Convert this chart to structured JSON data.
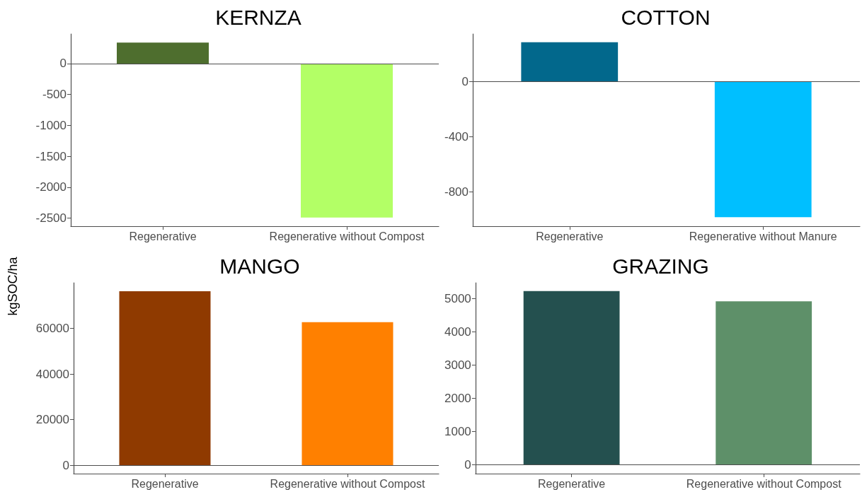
{
  "chart_data": [
    {
      "type": "bar",
      "title": "KERNZA",
      "ylabel": "kgSOC/ha",
      "categories": [
        "Regenerative",
        "Regenerative without Compost"
      ],
      "values": [
        340,
        -2490
      ],
      "colors": [
        "#4e6e2e",
        "#b3ff66"
      ],
      "ylim": [
        -2630,
        480
      ],
      "yticks": [
        0,
        -500,
        -1000,
        -1500,
        -2000,
        -2500
      ],
      "grid": false,
      "ref_lines": [
        {
          "axis": "y",
          "value": 0
        }
      ]
    },
    {
      "type": "bar",
      "title": "COTTON",
      "categories": [
        "Regenerative",
        "Regenerative without Manure"
      ],
      "values": [
        285,
        -985
      ],
      "colors": [
        "#02688c",
        "#00bfff"
      ],
      "ylim": [
        -1050,
        345
      ],
      "yticks": [
        0,
        -400,
        -800
      ],
      "grid": false,
      "ref_lines": [
        {
          "axis": "y",
          "value": 0
        }
      ]
    },
    {
      "type": "bar",
      "title": "MANGO",
      "categories": [
        "Regenerative",
        "Regenerative without Compost"
      ],
      "values": [
        76300,
        62700
      ],
      "colors": [
        "#8f3a00",
        "#ff8000"
      ],
      "ylim": [
        -3700,
        80000
      ],
      "yticks": [
        0,
        20000,
        40000,
        60000
      ],
      "grid": false,
      "ref_lines": [
        {
          "axis": "y",
          "value": 0
        }
      ]
    },
    {
      "type": "bar",
      "title": "GRAZING",
      "categories": [
        "Regenerative",
        "Regenerative without Compost"
      ],
      "values": [
        5220,
        4910
      ],
      "colors": [
        "#24504f",
        "#5e9069"
      ],
      "ylim": [
        -270,
        5470
      ],
      "yticks": [
        0,
        1000,
        2000,
        3000,
        4000,
        5000
      ],
      "grid": false,
      "ref_lines": [
        {
          "axis": "y",
          "value": 0
        }
      ]
    }
  ]
}
